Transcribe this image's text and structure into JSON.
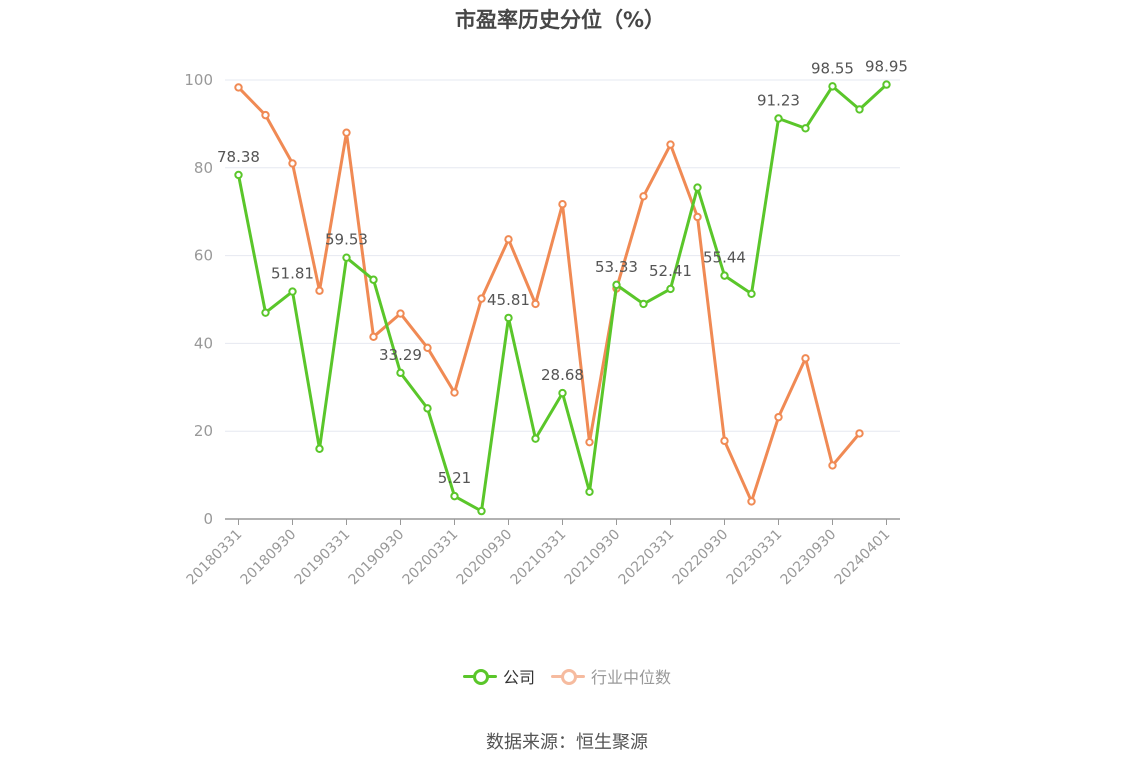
{
  "title": "市盈率历史分位（%）",
  "source_text": "数据来源：恒生聚源",
  "colors": {
    "company": "#5ac62a",
    "industry": "#f08a54",
    "industry_legend": "#f6bb9f",
    "grid": "#e6e8f0",
    "axis": "#999999"
  },
  "chart_data": {
    "type": "line",
    "ylim": [
      0,
      100
    ],
    "yticks": [
      0,
      20,
      40,
      60,
      80,
      100
    ],
    "grid": true,
    "legend_position": "bottom-center",
    "x": [
      "20180331",
      "20180630",
      "20180930",
      "20181231",
      "20190331",
      "20190630",
      "20190930",
      "20191231",
      "20200331",
      "20200630",
      "20200930",
      "20201231",
      "20210331",
      "20210630",
      "20210930",
      "20211231",
      "20220331",
      "20220630",
      "20220930",
      "20221231",
      "20230331",
      "20230630",
      "20230930",
      "20231231",
      "20240401"
    ],
    "xtick_labels": [
      "20180331",
      "20180930",
      "20190331",
      "20190930",
      "20200331",
      "20200930",
      "20210331",
      "20210930",
      "20220331",
      "20220930",
      "20230331",
      "20230930",
      "20240401"
    ],
    "series": [
      {
        "name": "公司",
        "values": [
          78.38,
          47.0,
          51.81,
          16.0,
          59.53,
          54.5,
          33.29,
          25.2,
          5.21,
          1.8,
          45.81,
          18.3,
          28.68,
          6.2,
          53.33,
          49.0,
          52.41,
          75.5,
          55.44,
          51.3,
          91.23,
          89.0,
          98.55,
          93.3,
          98.95
        ],
        "labels": [
          "78.38",
          null,
          "51.81",
          null,
          "59.53",
          null,
          "33.29",
          null,
          "5.21",
          null,
          "45.81",
          null,
          "28.68",
          null,
          "53.33",
          null,
          "52.41",
          null,
          "55.44",
          null,
          "91.23",
          null,
          "98.55",
          null,
          "98.95"
        ]
      },
      {
        "name": "行业中位数",
        "values": [
          98.3,
          92.0,
          81.0,
          52.0,
          88.0,
          41.5,
          46.8,
          39.0,
          28.8,
          50.2,
          63.7,
          49.0,
          71.7,
          17.5,
          52.5,
          73.5,
          85.3,
          68.8,
          17.8,
          4.0,
          23.2,
          36.6,
          12.2,
          19.5,
          null
        ]
      }
    ]
  }
}
